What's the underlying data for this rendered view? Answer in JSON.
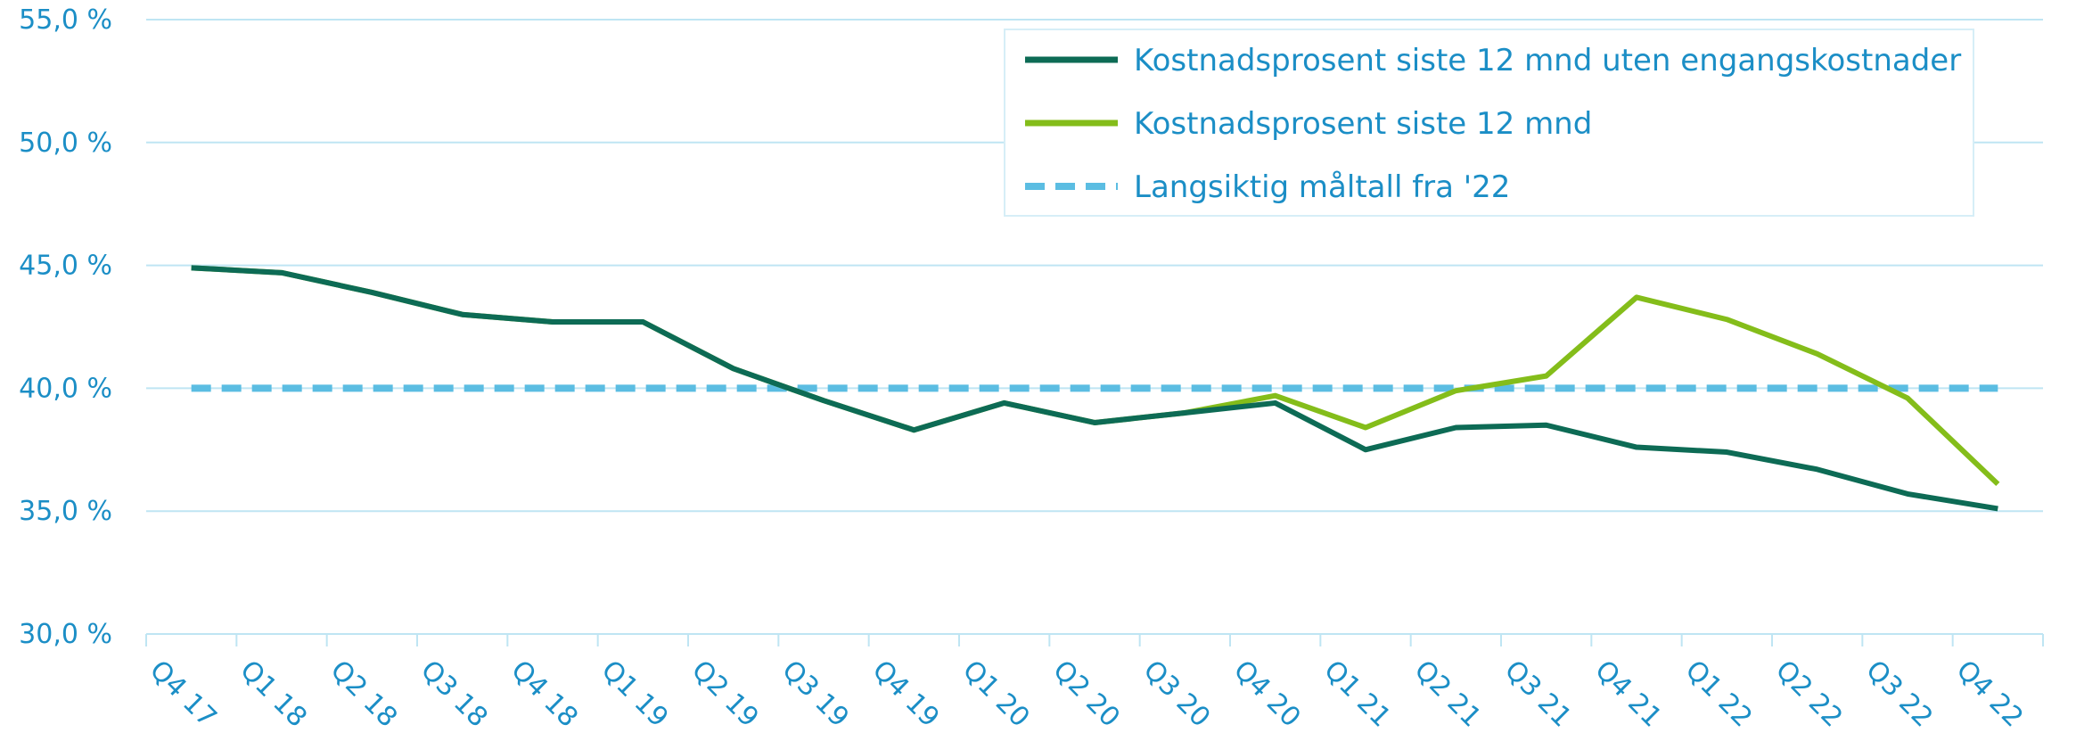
{
  "chart_data": {
    "type": "line",
    "categories": [
      "Q4 17",
      "Q1 18",
      "Q2 18",
      "Q3 18",
      "Q4 18",
      "Q1 19",
      "Q2 19",
      "Q3 19",
      "Q4 19",
      "Q1 20",
      "Q2 20",
      "Q3 20",
      "Q4 20",
      "Q1 21",
      "Q2 21",
      "Q3 21",
      "Q4 21",
      "Q1 22",
      "Q2 22",
      "Q3 22",
      "Q4 22"
    ],
    "series": [
      {
        "name": "Kostnadsprosent siste 12 mnd uten engangskostnader",
        "color": "#0d6b55",
        "dashed": false,
        "values": [
          44.9,
          44.7,
          43.9,
          43.0,
          42.7,
          42.7,
          40.8,
          39.5,
          38.3,
          39.4,
          38.6,
          39.0,
          39.4,
          37.5,
          38.4,
          38.5,
          37.6,
          37.4,
          36.7,
          35.7,
          35.1
        ]
      },
      {
        "name": "Kostnadsprosent siste 12 mnd",
        "color": "#84bd1a",
        "dashed": false,
        "values": [
          44.9,
          44.7,
          43.9,
          43.0,
          42.7,
          42.7,
          40.8,
          39.5,
          38.3,
          39.4,
          38.6,
          39.0,
          39.7,
          38.4,
          39.9,
          40.5,
          43.7,
          42.8,
          41.4,
          39.6,
          36.1
        ]
      },
      {
        "name": "Langsiktig måltall fra '22",
        "color": "#5bbde2",
        "dashed": true,
        "values": [
          40,
          40,
          40,
          40,
          40,
          40,
          40,
          40,
          40,
          40,
          40,
          40,
          40,
          40,
          40,
          40,
          40,
          40,
          40,
          40,
          40
        ]
      }
    ],
    "ylim": [
      30,
      55
    ],
    "yticks": [
      {
        "value": 30,
        "label": "30,0 %"
      },
      {
        "value": 35,
        "label": "35,0 %"
      },
      {
        "value": 40,
        "label": "40,0 %"
      },
      {
        "value": 45,
        "label": "45,0 %"
      },
      {
        "value": 50,
        "label": "50,0 %"
      },
      {
        "value": 55,
        "label": "55,0 %"
      }
    ],
    "grid": true,
    "legend": "upper right"
  }
}
